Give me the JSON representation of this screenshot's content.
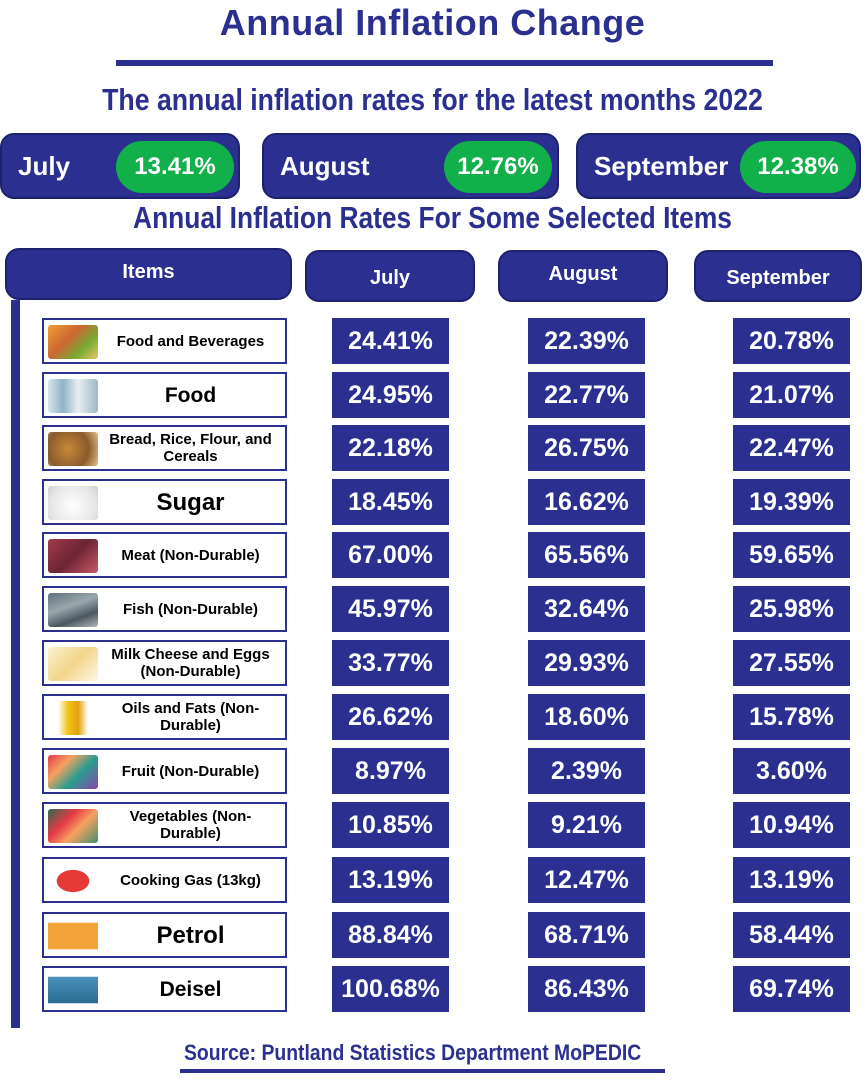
{
  "title": "Annual Inflation Change",
  "subtitle": "The annual inflation rates for the latest months 2022",
  "months": [
    {
      "name": "July",
      "rate": "13.41%"
    },
    {
      "name": "August",
      "rate": "12.76%"
    },
    {
      "name": "September",
      "rate": "12.38%"
    }
  ],
  "section_title": "Annual Inflation Rates For Some Selected Items",
  "table": {
    "headers": [
      "Items",
      "July",
      "August",
      "September"
    ],
    "rows": [
      {
        "item": "Food and Beverages",
        "icon": "food-beverages-icon",
        "july": "24.41%",
        "august": "22.39%",
        "september": "20.78%"
      },
      {
        "item": "Food",
        "icon": "food-icon",
        "july": "24.95%",
        "august": "22.77%",
        "september": "21.07%"
      },
      {
        "item": "Bread, Rice, Flour, and Cereals",
        "icon": "bread-icon",
        "july": "22.18%",
        "august": "26.75%",
        "september": "22.47%"
      },
      {
        "item": "Sugar",
        "icon": "sugar-icon",
        "july": "18.45%",
        "august": "16.62%",
        "september": "19.39%"
      },
      {
        "item": "Meat (Non-Durable)",
        "icon": "meat-icon",
        "july": "67.00%",
        "august": "65.56%",
        "september": "59.65%"
      },
      {
        "item": "Fish (Non-Durable)",
        "icon": "fish-icon",
        "july": "45.97%",
        "august": "32.64%",
        "september": "25.98%"
      },
      {
        "item": "Milk Cheese and Eggs (Non-Durable)",
        "icon": "milk-icon",
        "july": "33.77%",
        "august": "29.93%",
        "september": "27.55%"
      },
      {
        "item": "Oils and Fats (Non-Durable)",
        "icon": "oil-icon",
        "july": "26.62%",
        "august": "18.60%",
        "september": "15.78%"
      },
      {
        "item": "Fruit (Non-Durable)",
        "icon": "fruit-icon",
        "july": "8.97%",
        "august": "2.39%",
        "september": "3.60%"
      },
      {
        "item": "Vegetables (Non-Durable)",
        "icon": "vegetables-icon",
        "july": "10.85%",
        "august": "9.21%",
        "september": "10.94%"
      },
      {
        "item": "Cooking Gas (13kg)",
        "icon": "gas-cylinder-icon",
        "july": "13.19%",
        "august": "12.47%",
        "september": "13.19%"
      },
      {
        "item": "Petrol",
        "icon": "petrol-pump-icon",
        "july": "88.84%",
        "august": "68.71%",
        "september": "58.44%"
      },
      {
        "item": "Deisel",
        "icon": "diesel-pump-icon",
        "july": "100.68%",
        "august": "86.43%",
        "september": "69.74%"
      }
    ]
  },
  "source": "Source: Puntland Statistics Department MoPEDIC",
  "colors": {
    "navy": "#2b2f8f",
    "green": "#12b04a"
  },
  "chart_data": {
    "type": "table",
    "title": "Annual Inflation Rates For Some Selected Items",
    "columns": [
      "Items",
      "July",
      "August",
      "September"
    ],
    "categories": [
      "Food and Beverages",
      "Food",
      "Bread, Rice, Flour, and Cereals",
      "Sugar",
      "Meat (Non-Durable)",
      "Fish (Non-Durable)",
      "Milk Cheese and Eggs (Non-Durable)",
      "Oils and Fats (Non-Durable)",
      "Fruit (Non-Durable)",
      "Vegetables (Non-Durable)",
      "Cooking Gas (13kg)",
      "Petrol",
      "Deisel"
    ],
    "series": [
      {
        "name": "July",
        "values": [
          24.41,
          24.95,
          22.18,
          18.45,
          67.0,
          45.97,
          33.77,
          26.62,
          8.97,
          10.85,
          13.19,
          88.84,
          100.68
        ]
      },
      {
        "name": "August",
        "values": [
          22.39,
          22.77,
          26.75,
          16.62,
          65.56,
          32.64,
          29.93,
          18.6,
          2.39,
          9.21,
          12.47,
          68.71,
          86.43
        ]
      },
      {
        "name": "September",
        "values": [
          20.78,
          21.07,
          22.47,
          19.39,
          59.65,
          25.98,
          27.55,
          15.78,
          3.6,
          10.94,
          13.19,
          58.44,
          69.74
        ]
      }
    ],
    "headline": {
      "July": 13.41,
      "August": 12.76,
      "September": 12.38
    }
  }
}
